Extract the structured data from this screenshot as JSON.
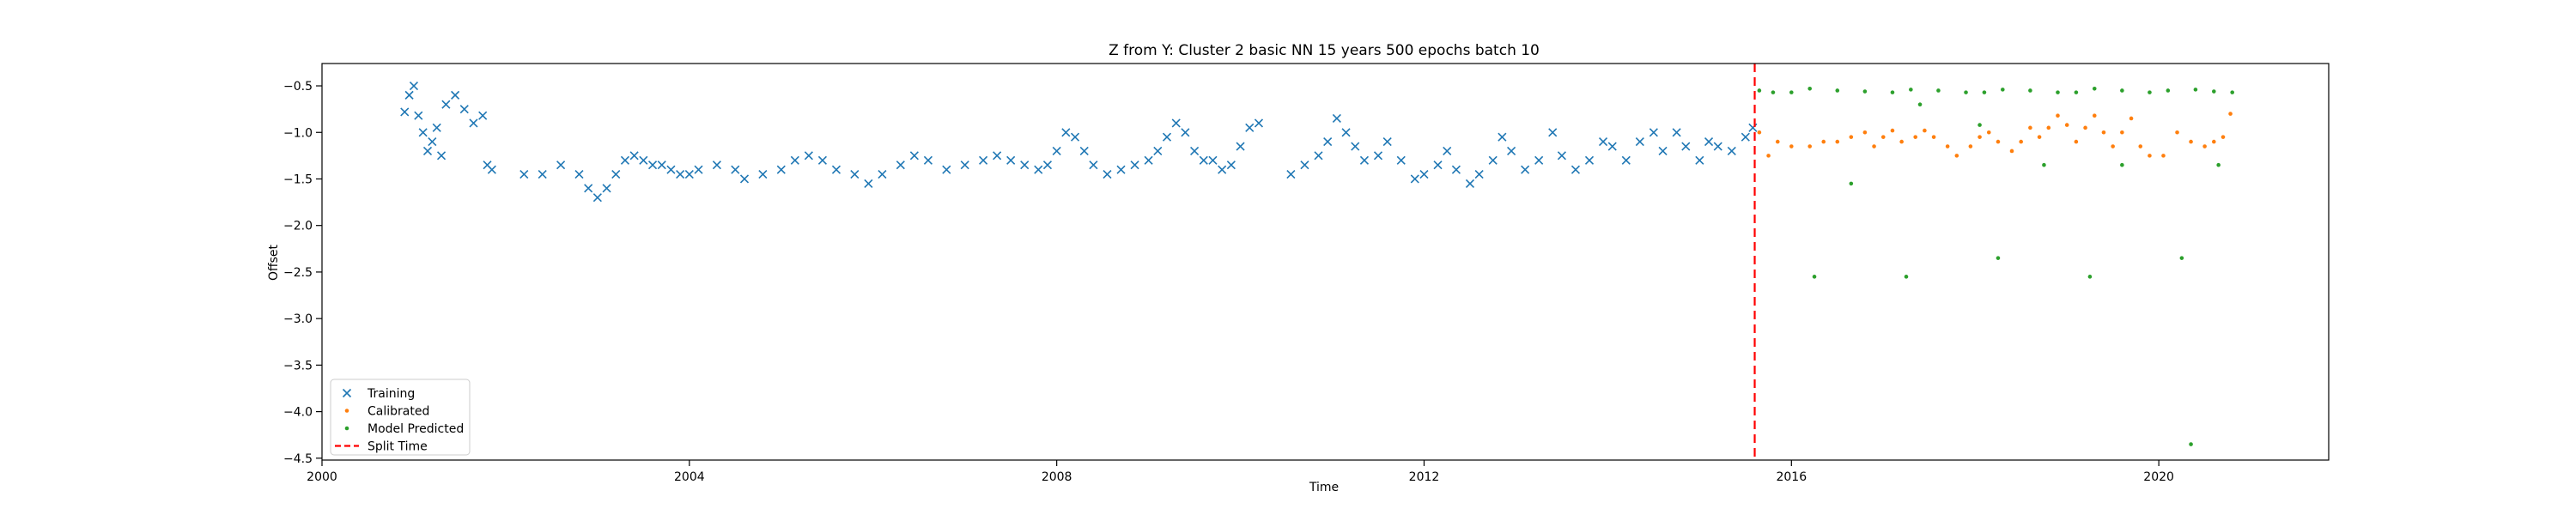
{
  "chart_data": {
    "type": "scatter",
    "title": "Z from Y: Cluster 2 basic NN 15 years 500 epochs batch 10",
    "xlabel": "Time",
    "ylabel": "Offset",
    "xlim": [
      2000.0,
      2021.85
    ],
    "ylim": [
      -4.52,
      -0.26
    ],
    "x_ticks": [
      2000,
      2004,
      2008,
      2012,
      2016,
      2020
    ],
    "x_tick_labels": [
      "2000",
      "2004",
      "2008",
      "2012",
      "2016",
      "2020"
    ],
    "y_ticks": [
      -0.5,
      -1.0,
      -1.5,
      -2.0,
      -2.5,
      -3.0,
      -3.5,
      -4.0,
      -4.5
    ],
    "y_tick_labels": [
      "−0.5",
      "−1.0",
      "−1.5",
      "−2.0",
      "−2.5",
      "−3.0",
      "−3.5",
      "−4.0",
      "−4.5"
    ],
    "legend_position": "lower-left",
    "split_time": 2015.6,
    "series": [
      {
        "name": "Training",
        "marker": "x",
        "color": "#1f77b4",
        "points": [
          [
            2000.9,
            -0.78
          ],
          [
            2000.95,
            -0.6
          ],
          [
            2001.0,
            -0.5
          ],
          [
            2001.05,
            -0.82
          ],
          [
            2001.1,
            -1.0
          ],
          [
            2001.15,
            -1.2
          ],
          [
            2001.2,
            -1.1
          ],
          [
            2001.25,
            -0.95
          ],
          [
            2001.3,
            -1.25
          ],
          [
            2001.35,
            -0.7
          ],
          [
            2001.45,
            -0.6
          ],
          [
            2001.55,
            -0.75
          ],
          [
            2001.65,
            -0.9
          ],
          [
            2001.75,
            -0.82
          ],
          [
            2001.8,
            -1.35
          ],
          [
            2001.85,
            -1.4
          ],
          [
            2002.2,
            -1.45
          ],
          [
            2002.4,
            -1.45
          ],
          [
            2002.6,
            -1.35
          ],
          [
            2002.8,
            -1.45
          ],
          [
            2002.9,
            -1.6
          ],
          [
            2003.0,
            -1.7
          ],
          [
            2003.1,
            -1.6
          ],
          [
            2003.2,
            -1.45
          ],
          [
            2003.3,
            -1.3
          ],
          [
            2003.4,
            -1.25
          ],
          [
            2003.5,
            -1.3
          ],
          [
            2003.6,
            -1.35
          ],
          [
            2003.7,
            -1.35
          ],
          [
            2003.8,
            -1.4
          ],
          [
            2003.9,
            -1.45
          ],
          [
            2004.0,
            -1.45
          ],
          [
            2004.1,
            -1.4
          ],
          [
            2004.3,
            -1.35
          ],
          [
            2004.5,
            -1.4
          ],
          [
            2004.6,
            -1.5
          ],
          [
            2004.8,
            -1.45
          ],
          [
            2005.0,
            -1.4
          ],
          [
            2005.15,
            -1.3
          ],
          [
            2005.3,
            -1.25
          ],
          [
            2005.45,
            -1.3
          ],
          [
            2005.6,
            -1.4
          ],
          [
            2005.8,
            -1.45
          ],
          [
            2005.95,
            -1.55
          ],
          [
            2006.1,
            -1.45
          ],
          [
            2006.3,
            -1.35
          ],
          [
            2006.45,
            -1.25
          ],
          [
            2006.6,
            -1.3
          ],
          [
            2006.8,
            -1.4
          ],
          [
            2007.0,
            -1.35
          ],
          [
            2007.2,
            -1.3
          ],
          [
            2007.35,
            -1.25
          ],
          [
            2007.5,
            -1.3
          ],
          [
            2007.65,
            -1.35
          ],
          [
            2007.8,
            -1.4
          ],
          [
            2007.9,
            -1.35
          ],
          [
            2008.0,
            -1.2
          ],
          [
            2008.1,
            -1.0
          ],
          [
            2008.2,
            -1.05
          ],
          [
            2008.3,
            -1.2
          ],
          [
            2008.4,
            -1.35
          ],
          [
            2008.55,
            -1.45
          ],
          [
            2008.7,
            -1.4
          ],
          [
            2008.85,
            -1.35
          ],
          [
            2009.0,
            -1.3
          ],
          [
            2009.1,
            -1.2
          ],
          [
            2009.2,
            -1.05
          ],
          [
            2009.3,
            -0.9
          ],
          [
            2009.4,
            -1.0
          ],
          [
            2009.5,
            -1.2
          ],
          [
            2009.6,
            -1.3
          ],
          [
            2009.7,
            -1.3
          ],
          [
            2009.8,
            -1.4
          ],
          [
            2009.9,
            -1.35
          ],
          [
            2010.0,
            -1.15
          ],
          [
            2010.1,
            -0.95
          ],
          [
            2010.2,
            -0.9
          ],
          [
            2010.55,
            -1.45
          ],
          [
            2010.7,
            -1.35
          ],
          [
            2010.85,
            -1.25
          ],
          [
            2010.95,
            -1.1
          ],
          [
            2011.05,
            -0.85
          ],
          [
            2011.15,
            -1.0
          ],
          [
            2011.25,
            -1.15
          ],
          [
            2011.35,
            -1.3
          ],
          [
            2011.5,
            -1.25
          ],
          [
            2011.6,
            -1.1
          ],
          [
            2011.75,
            -1.3
          ],
          [
            2011.9,
            -1.5
          ],
          [
            2012.0,
            -1.45
          ],
          [
            2012.15,
            -1.35
          ],
          [
            2012.25,
            -1.2
          ],
          [
            2012.35,
            -1.4
          ],
          [
            2012.5,
            -1.55
          ],
          [
            2012.6,
            -1.45
          ],
          [
            2012.75,
            -1.3
          ],
          [
            2012.85,
            -1.05
          ],
          [
            2012.95,
            -1.2
          ],
          [
            2013.1,
            -1.4
          ],
          [
            2013.25,
            -1.3
          ],
          [
            2013.4,
            -1.0
          ],
          [
            2013.5,
            -1.25
          ],
          [
            2013.65,
            -1.4
          ],
          [
            2013.8,
            -1.3
          ],
          [
            2013.95,
            -1.1
          ],
          [
            2014.05,
            -1.15
          ],
          [
            2014.2,
            -1.3
          ],
          [
            2014.35,
            -1.1
          ],
          [
            2014.5,
            -1.0
          ],
          [
            2014.6,
            -1.2
          ],
          [
            2014.75,
            -1.0
          ],
          [
            2014.85,
            -1.15
          ],
          [
            2015.0,
            -1.3
          ],
          [
            2015.1,
            -1.1
          ],
          [
            2015.2,
            -1.15
          ],
          [
            2015.35,
            -1.2
          ],
          [
            2015.5,
            -1.05
          ],
          [
            2015.58,
            -0.95
          ]
        ]
      },
      {
        "name": "Calibrated",
        "marker": ".",
        "color": "#ff7f0e",
        "points": [
          [
            2015.65,
            -1.0
          ],
          [
            2015.75,
            -1.25
          ],
          [
            2015.85,
            -1.1
          ],
          [
            2016.0,
            -1.15
          ],
          [
            2016.2,
            -1.15
          ],
          [
            2016.35,
            -1.1
          ],
          [
            2016.5,
            -1.1
          ],
          [
            2016.65,
            -1.05
          ],
          [
            2016.8,
            -1.0
          ],
          [
            2016.9,
            -1.15
          ],
          [
            2017.0,
            -1.05
          ],
          [
            2017.1,
            -0.98
          ],
          [
            2017.2,
            -1.1
          ],
          [
            2017.35,
            -1.05
          ],
          [
            2017.45,
            -0.98
          ],
          [
            2017.55,
            -1.05
          ],
          [
            2017.7,
            -1.15
          ],
          [
            2017.8,
            -1.25
          ],
          [
            2017.95,
            -1.15
          ],
          [
            2018.05,
            -1.05
          ],
          [
            2018.15,
            -1.0
          ],
          [
            2018.25,
            -1.1
          ],
          [
            2018.4,
            -1.2
          ],
          [
            2018.5,
            -1.1
          ],
          [
            2018.6,
            -0.95
          ],
          [
            2018.7,
            -1.05
          ],
          [
            2018.8,
            -0.95
          ],
          [
            2018.9,
            -0.82
          ],
          [
            2019.0,
            -0.92
          ],
          [
            2019.1,
            -1.1
          ],
          [
            2019.2,
            -0.95
          ],
          [
            2019.3,
            -0.82
          ],
          [
            2019.4,
            -1.0
          ],
          [
            2019.5,
            -1.15
          ],
          [
            2019.6,
            -1.0
          ],
          [
            2019.7,
            -0.85
          ],
          [
            2019.8,
            -1.15
          ],
          [
            2019.9,
            -1.25
          ],
          [
            2020.05,
            -1.25
          ],
          [
            2020.2,
            -1.0
          ],
          [
            2020.35,
            -1.1
          ],
          [
            2020.5,
            -1.15
          ],
          [
            2020.6,
            -1.1
          ],
          [
            2020.7,
            -1.05
          ],
          [
            2020.78,
            -0.8
          ]
        ]
      },
      {
        "name": "Model Predicted",
        "marker": ".",
        "color": "#2ca02c",
        "points": [
          [
            2015.65,
            -0.55
          ],
          [
            2015.8,
            -0.57
          ],
          [
            2016.0,
            -0.57
          ],
          [
            2016.2,
            -0.53
          ],
          [
            2016.5,
            -0.55
          ],
          [
            2016.8,
            -0.56
          ],
          [
            2017.1,
            -0.57
          ],
          [
            2017.3,
            -0.54
          ],
          [
            2017.6,
            -0.55
          ],
          [
            2017.9,
            -0.57
          ],
          [
            2018.1,
            -0.57
          ],
          [
            2018.3,
            -0.54
          ],
          [
            2018.6,
            -0.55
          ],
          [
            2018.9,
            -0.57
          ],
          [
            2019.1,
            -0.57
          ],
          [
            2019.3,
            -0.53
          ],
          [
            2019.6,
            -0.55
          ],
          [
            2019.9,
            -0.57
          ],
          [
            2020.1,
            -0.55
          ],
          [
            2020.4,
            -0.54
          ],
          [
            2020.6,
            -0.56
          ],
          [
            2020.8,
            -0.57
          ],
          [
            2016.65,
            -1.55
          ],
          [
            2017.4,
            -0.7
          ],
          [
            2018.05,
            -0.92
          ],
          [
            2018.75,
            -1.35
          ],
          [
            2019.6,
            -1.35
          ],
          [
            2020.65,
            -1.35
          ],
          [
            2016.25,
            -2.55
          ],
          [
            2017.25,
            -2.55
          ],
          [
            2018.25,
            -2.35
          ],
          [
            2019.25,
            -2.55
          ],
          [
            2020.25,
            -2.35
          ],
          [
            2020.35,
            -4.35
          ]
        ]
      }
    ]
  }
}
